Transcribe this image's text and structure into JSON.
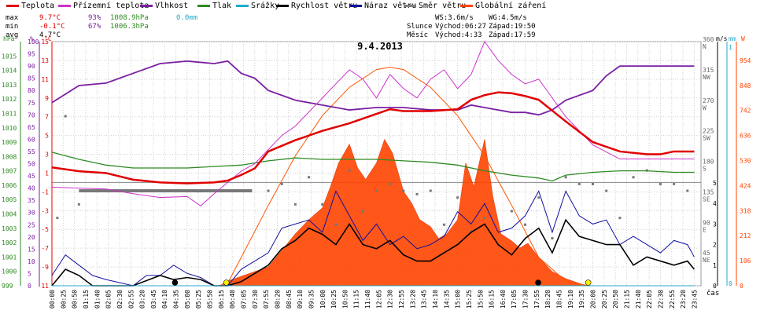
{
  "legend": [
    {
      "label": "Teplota",
      "color": "#e00000"
    },
    {
      "label": "Přízemní teplota",
      "color": "#cc33cc"
    },
    {
      "label": "Vlhkost",
      "color": "#7a1fa2"
    },
    {
      "label": "Tlak",
      "color": "#2e8b22"
    },
    {
      "label": "Srážky",
      "color": "#22aacc"
    },
    {
      "label": "Rychlost větru",
      "color": "#000000"
    },
    {
      "label": "Náraz větru",
      "color": "#1010a0"
    },
    {
      "label": "Směr větru",
      "color": "#808080"
    },
    {
      "label": "Globální záření",
      "color": "#ff4400"
    }
  ],
  "stats": {
    "max_label": "max",
    "max_temp": "9.7°C",
    "max_hum": "93%",
    "max_press": "1008.9hPa",
    "max_rain": "0.0mm",
    "min_label": "min",
    "min_temp": "-0.1°C",
    "min_hum": "67%",
    "min_press": "1006.3hPa",
    "avg_label": "avg",
    "avg_temp": "4.7°C",
    "ws": "WS:3.6m/s",
    "wg": "WG:4.5m/s",
    "sun_label": "Slunce",
    "sun_rise": "Východ:06:27",
    "sun_set": "Západ:19:50",
    "moon_label": "Měsíc",
    "moon_rise": "Východ:4:33",
    "moon_set": "Západ:17:59"
  },
  "chart_data": {
    "type": "line",
    "title": "9.4.2013",
    "xlabel": "čas",
    "x_ticks": [
      "00:00",
      "00:25",
      "00:50",
      "01:15",
      "01:40",
      "02:05",
      "02:30",
      "02:55",
      "03:20",
      "03:45",
      "04:10",
      "04:35",
      "05:00",
      "05:25",
      "05:50",
      "06:15",
      "06:40",
      "07:05",
      "07:30",
      "07:55",
      "08:20",
      "08:45",
      "09:10",
      "09:35",
      "10:00",
      "10:25",
      "10:50",
      "11:15",
      "11:40",
      "12:05",
      "12:30",
      "12:55",
      "13:20",
      "13:45",
      "14:10",
      "14:35",
      "15:00",
      "15:25",
      "15:50",
      "16:15",
      "16:40",
      "17:05",
      "17:30",
      "17:55",
      "18:20",
      "18:45",
      "19:10",
      "19:35",
      "20:00",
      "20:25",
      "20:50",
      "21:15",
      "21:40",
      "22:05",
      "22:30",
      "22:55",
      "23:20",
      "23:45"
    ],
    "axes": {
      "pressure": {
        "unit": "hPa",
        "range": [
          999,
          1016
        ],
        "ticks": [
          "999",
          "1000",
          "1001",
          "1002",
          "1003",
          "1004",
          "1005",
          "1006",
          "1007",
          "1008",
          "1009",
          "1010",
          "1011",
          "1012",
          "1013",
          "1014",
          "1015"
        ]
      },
      "humidity": {
        "unit": "%",
        "range": [
          0,
          100
        ],
        "ticks": [
          "0",
          "5",
          "10",
          "15",
          "20",
          "25",
          "30",
          "35",
          "40",
          "45",
          "50",
          "55",
          "60",
          "65",
          "70",
          "75",
          "80",
          "85",
          "90",
          "95",
          "100"
        ]
      },
      "temperature": {
        "unit": "°C",
        "range": [
          -11,
          15
        ],
        "ticks": [
          "-11",
          "-9",
          "-7",
          "-5",
          "-3",
          "-1",
          "1",
          "3",
          "5",
          "7",
          "9",
          "11",
          "13",
          "15"
        ]
      },
      "wind_direction": {
        "ticks": [
          "45",
          "90",
          "135",
          "180",
          "225",
          "270",
          "315",
          "360"
        ],
        "labels": [
          "NE",
          "E",
          "SE",
          "S",
          "SW",
          "W",
          "NW",
          "N"
        ]
      },
      "wind_speed": {
        "unit": "m/s",
        "ticks": [
          "0",
          "1",
          "2",
          "3",
          "4",
          "5"
        ]
      },
      "rain": {
        "unit": "mm",
        "ticks": [
          "0",
          "1"
        ]
      },
      "radiation": {
        "unit": "W",
        "ticks": [
          "0",
          "106",
          "212",
          "318",
          "424",
          "530",
          "636",
          "742",
          "848",
          "954"
        ]
      }
    },
    "series": [
      {
        "name": "Teplota",
        "unit": "°C",
        "x": [
          0,
          1,
          2,
          3,
          4,
          5,
          6,
          6.5,
          7,
          7.5,
          8,
          9,
          10,
          11,
          12,
          12.5,
          13,
          14,
          15,
          15.5,
          16,
          16.5,
          17,
          17.5,
          18,
          19,
          20,
          21,
          22,
          22.5,
          23,
          23.75
        ],
        "y": [
          1.6,
          1.2,
          1.0,
          0.3,
          0.0,
          -0.1,
          0.0,
          0.2,
          0.8,
          1.5,
          3.3,
          4.5,
          5.5,
          6.3,
          7.3,
          7.8,
          7.6,
          7.6,
          7.8,
          8.8,
          9.3,
          9.6,
          9.5,
          9.2,
          8.8,
          6.5,
          4.3,
          3.3,
          3.0,
          3.0,
          3.3,
          3.3
        ]
      },
      {
        "name": "Přízemní teplota",
        "unit": "°C",
        "x": [
          0,
          1,
          2,
          3,
          4,
          5,
          5.5,
          6,
          6.5,
          7,
          7.5,
          8,
          8.5,
          9,
          10,
          10.5,
          11,
          11.5,
          12,
          12.5,
          13,
          13.5,
          14,
          14.5,
          15,
          15.5,
          16,
          16.5,
          17,
          17.5,
          18,
          18.5,
          19,
          20,
          21,
          22,
          23,
          23.75
        ],
        "y": [
          -0.5,
          -0.6,
          -0.7,
          -1.2,
          -1.6,
          -1.5,
          -2.5,
          -1.2,
          0.0,
          1.2,
          2.0,
          3.5,
          5.0,
          6.0,
          9.0,
          10.5,
          12.0,
          11.0,
          9.0,
          11.5,
          10.0,
          9.0,
          11.0,
          12.0,
          10.0,
          11.5,
          15.0,
          13.0,
          11.5,
          10.5,
          11.0,
          9.0,
          7.0,
          4.0,
          2.5,
          2.5,
          2.5,
          2.5
        ]
      },
      {
        "name": "Vlhkost",
        "unit": "%",
        "x": [
          0,
          1,
          2,
          3,
          4,
          5,
          6,
          6.5,
          7,
          7.5,
          8,
          9,
          10,
          11,
          12,
          13,
          14,
          15,
          15.5,
          16,
          16.5,
          17,
          17.5,
          18,
          18.5,
          19,
          20,
          20.5,
          21,
          22,
          23,
          23.75
        ],
        "y": [
          75,
          82,
          83,
          87,
          91,
          92,
          91,
          92,
          87,
          85,
          80,
          76,
          74,
          72,
          73,
          73,
          72,
          72,
          74,
          73,
          72,
          71,
          71,
          70,
          72,
          76,
          80,
          86,
          90,
          90,
          90,
          90
        ]
      },
      {
        "name": "Tlak",
        "unit": "hPa",
        "x": [
          0,
          1,
          2,
          3,
          4,
          5,
          6,
          7,
          8,
          9,
          10,
          11,
          12,
          13,
          14,
          15,
          16,
          17,
          18,
          18.5,
          19,
          20,
          21,
          22,
          23,
          23.75
        ],
        "y": [
          1008.3,
          1007.8,
          1007.4,
          1007.2,
          1007.2,
          1007.2,
          1007.3,
          1007.4,
          1007.7,
          1007.9,
          1007.8,
          1007.8,
          1007.8,
          1007.7,
          1007.6,
          1007.4,
          1007.0,
          1006.7,
          1006.5,
          1006.3,
          1006.7,
          1006.9,
          1007.0,
          1007.0,
          1006.9,
          1006.9
        ]
      },
      {
        "name": "Rychlost větru",
        "unit": "m/s",
        "x": [
          0,
          0.5,
          1,
          1.5,
          2,
          3,
          4,
          4.5,
          5,
          5.5,
          6,
          6.5,
          7,
          7.5,
          8,
          8.5,
          9,
          9.5,
          10,
          10.5,
          11,
          11.5,
          12,
          12.5,
          13,
          13.5,
          14,
          14.5,
          15,
          15.5,
          16,
          16.5,
          17,
          17.5,
          18,
          18.5,
          19,
          19.5,
          20,
          20.5,
          21,
          21.5,
          22,
          22.5,
          23,
          23.5,
          23.75
        ],
        "y": [
          0,
          0.8,
          0.5,
          0,
          0,
          0,
          0.5,
          0.3,
          0.4,
          0.3,
          0,
          0,
          0.2,
          0.6,
          1.0,
          1.8,
          2.2,
          2.8,
          2.5,
          2.0,
          3.0,
          2.0,
          1.8,
          2.2,
          1.5,
          1.2,
          1.2,
          1.6,
          2.0,
          2.6,
          3.0,
          2.0,
          1.5,
          2.3,
          2.8,
          1.6,
          3.2,
          2.4,
          2.2,
          2.0,
          2.0,
          1.0,
          1.4,
          1.2,
          1.0,
          1.2,
          0.8
        ]
      },
      {
        "name": "Náraz větru",
        "unit": "m/s",
        "x": [
          0,
          0.5,
          1,
          1.5,
          2,
          3,
          3.5,
          4,
          4.5,
          5,
          5.5,
          6,
          6.5,
          7,
          7.5,
          8,
          8.5,
          9,
          9.5,
          10,
          10.5,
          11,
          11.5,
          12,
          12.5,
          13,
          13.5,
          14,
          14.5,
          15,
          15.5,
          16,
          16.5,
          17,
          17.5,
          18,
          18.5,
          19,
          19.5,
          20,
          20.5,
          21,
          21.5,
          22,
          22.5,
          23,
          23.5,
          23.75
        ],
        "y": [
          0.5,
          1.5,
          1.0,
          0.5,
          0.3,
          0,
          0.5,
          0.5,
          1.0,
          0.6,
          0.4,
          0,
          0,
          0.8,
          1.2,
          1.6,
          2.8,
          3.0,
          3.2,
          2.6,
          4.6,
          3.4,
          2.2,
          3.0,
          2.0,
          2.4,
          1.8,
          2.0,
          2.4,
          3.6,
          3.0,
          4.0,
          2.6,
          2.8,
          3.4,
          4.6,
          2.6,
          4.6,
          3.4,
          3.0,
          3.2,
          2.0,
          2.4,
          2.0,
          1.6,
          2.2,
          2.0,
          1.4
        ]
      },
      {
        "name": "Směr větru",
        "unit": "°",
        "x": [
          0.2,
          0.5,
          1,
          1.5,
          2,
          3,
          4,
          5,
          6,
          7,
          8,
          8.5,
          9,
          9.5,
          10,
          10.5,
          11,
          11.5,
          12,
          12.5,
          13,
          13.5,
          14,
          14.5,
          15,
          15.5,
          16,
          16.5,
          17,
          17.5,
          18,
          18.5,
          19,
          19.5,
          20,
          20.5,
          21,
          21.5,
          22,
          22.5,
          23,
          23.5
        ],
        "y": [
          100,
          250,
          120,
          140,
          140,
          140,
          140,
          140,
          140,
          140,
          140,
          150,
          120,
          160,
          120,
          90,
          170,
          110,
          140,
          150,
          140,
          135,
          140,
          90,
          130,
          80,
          100,
          60,
          110,
          90,
          130,
          70,
          160,
          150,
          150,
          140,
          100,
          160,
          170,
          150,
          150,
          140
        ]
      },
      {
        "name": "Globální záření",
        "unit": "W",
        "x": [
          6.2,
          6.5,
          7,
          8,
          8.5,
          9,
          9.5,
          10,
          10.3,
          10.6,
          11,
          11.3,
          11.6,
          12,
          12.3,
          12.6,
          13,
          13.3,
          13.6,
          14,
          14.3,
          14.6,
          15,
          15.3,
          15.6,
          16,
          16.3,
          16.6,
          17,
          17.3,
          17.6,
          18,
          18.5,
          19,
          19.5,
          19.8
        ],
        "y": [
          0,
          20,
          40,
          80,
          150,
          220,
          280,
          330,
          420,
          520,
          600,
          500,
          450,
          520,
          620,
          560,
          400,
          350,
          280,
          250,
          200,
          220,
          280,
          520,
          420,
          620,
          380,
          220,
          190,
          160,
          180,
          120,
          60,
          30,
          10,
          0
        ]
      },
      {
        "name": "Srážky",
        "unit": "mm",
        "x": [
          0,
          23.75
        ],
        "y": [
          0,
          0
        ]
      }
    ],
    "clear_sky_radiation": {
      "x": [
        6.45,
        7,
        8,
        9,
        10,
        11,
        12,
        12.5,
        13,
        14,
        15,
        16,
        17,
        18,
        19,
        19.83
      ],
      "y": [
        0,
        120,
        340,
        550,
        720,
        840,
        915,
        925,
        915,
        840,
        720,
        550,
        340,
        120,
        20,
        0
      ]
    },
    "grid": true,
    "legend_position": "top"
  }
}
